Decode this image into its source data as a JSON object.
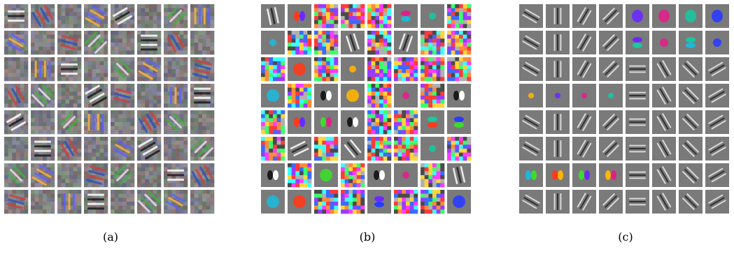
{
  "panels": [
    {
      "id": "a",
      "caption": "(a)",
      "style": "mixed",
      "grid": [
        8,
        8
      ]
    },
    {
      "id": "b",
      "caption": "(b)",
      "style": "noisy",
      "grid": [
        8,
        8
      ]
    },
    {
      "id": "c",
      "caption": "(c)",
      "style": "clean",
      "grid": [
        8,
        8
      ]
    }
  ],
  "colors": {
    "background": "#ffffff",
    "gray": "#7a7a7a",
    "accents": [
      "#1fb8d8",
      "#ff3a1a",
      "#3ddc2a",
      "#ffb400",
      "#6a2aff",
      "#e0208a",
      "#19c7a0",
      "#2a3cff"
    ]
  }
}
